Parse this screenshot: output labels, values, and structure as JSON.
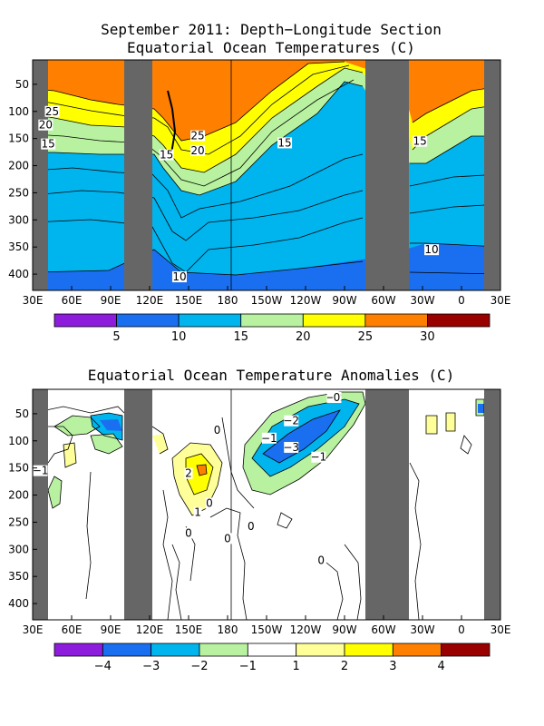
{
  "panels": [
    {
      "title_line1": "September 2011: Depth−Longitude Section",
      "title_line2": "Equatorial Ocean Temperatures (C)",
      "chart_data": {
        "type": "heatmap",
        "title": "September 2011: Depth−Longitude Section / Equatorial Ocean Temperatures (C)",
        "x_ticks": [
          "30E",
          "60E",
          "90E",
          "120E",
          "150E",
          "180",
          "150W",
          "120W",
          "90W",
          "60W",
          "30W",
          "0",
          "30E"
        ],
        "y_ticks": [
          "50",
          "100",
          "150",
          "200",
          "250",
          "300",
          "350",
          "400"
        ],
        "xlim_deg_east": [
          30,
          390
        ],
        "ylim_depth_m": [
          430,
          5
        ],
        "land_gaps_deg_east": [
          [
            30,
            43
          ],
          [
            103,
            123
          ],
          [
            278,
            298
          ],
          [
            370,
            390
          ]
        ],
        "isotherm_labels": [
          {
            "text": "25",
            "lon": 45,
            "depth": 100
          },
          {
            "text": "20",
            "lon": 40,
            "depth": 125
          },
          {
            "text": "15",
            "lon": 42,
            "depth": 160
          },
          {
            "text": "25",
            "lon": 157,
            "depth": 145
          },
          {
            "text": "20",
            "lon": 157,
            "depth": 172
          },
          {
            "text": "15",
            "lon": 133,
            "depth": 180
          },
          {
            "text": "15",
            "lon": 224,
            "depth": 158
          },
          {
            "text": "10",
            "lon": 143,
            "depth": 405
          },
          {
            "text": "15",
            "lon": 328,
            "depth": 155
          },
          {
            "text": "10",
            "lon": 337,
            "depth": 355
          }
        ],
        "colorbar": {
          "labels": [
            "5",
            "10",
            "15",
            "20",
            "25",
            "30"
          ],
          "colors": [
            "#8e1cdc",
            "#1a6ff0",
            "#00b4ee",
            "#b8f2a0",
            "#ffff00",
            "#ff7f00",
            "#990000"
          ]
        }
      }
    },
    {
      "title_line1": "Equatorial Ocean Temperature Anomalies (C)",
      "chart_data": {
        "type": "heatmap",
        "title": "Equatorial Ocean Temperature Anomalies (C)",
        "x_ticks": [
          "30E",
          "60E",
          "90E",
          "120E",
          "150E",
          "180",
          "150W",
          "120W",
          "90W",
          "60W",
          "30W",
          "0",
          "30E"
        ],
        "y_ticks": [
          "50",
          "100",
          "150",
          "200",
          "250",
          "300",
          "350",
          "400"
        ],
        "xlim_deg_east": [
          30,
          390
        ],
        "ylim_depth_m": [
          430,
          5
        ],
        "land_gaps_deg_east": [
          [
            30,
            43
          ],
          [
            103,
            123
          ],
          [
            278,
            298
          ],
          [
            370,
            390
          ]
        ],
        "contour_labels": [
          {
            "text": "−1",
            "lon": 36,
            "depth": 155
          },
          {
            "text": "2",
            "lon": 150,
            "depth": 160
          },
          {
            "text": "1",
            "lon": 157,
            "depth": 232
          },
          {
            "text": "0",
            "lon": 166,
            "depth": 215
          },
          {
            "text": "0",
            "lon": 172,
            "depth": 80
          },
          {
            "text": "0",
            "lon": 180,
            "depth": 280
          },
          {
            "text": "0",
            "lon": 198,
            "depth": 258
          },
          {
            "text": "0",
            "lon": 150,
            "depth": 270
          },
          {
            "text": "−1",
            "lon": 212,
            "depth": 95
          },
          {
            "text": "−2",
            "lon": 229,
            "depth": 63
          },
          {
            "text": "−3",
            "lon": 229,
            "depth": 112
          },
          {
            "text": "−1",
            "lon": 250,
            "depth": 130
          },
          {
            "text": "−2",
            "lon": 262,
            "depth": 20
          },
          {
            "text": "0",
            "lon": 252,
            "depth": 320
          },
          {
            "text": "0",
            "lon": 264,
            "depth": 20
          }
        ],
        "colorbar": {
          "labels": [
            "−4",
            "−3",
            "−2",
            "−1",
            "1",
            "2",
            "3",
            "4"
          ],
          "colors": [
            "#8e1cdc",
            "#1a6ff0",
            "#00b4ee",
            "#b8f2a0",
            "#ffffff",
            "#ffff99",
            "#ffff00",
            "#ff7f00",
            "#990000"
          ]
        }
      }
    }
  ]
}
